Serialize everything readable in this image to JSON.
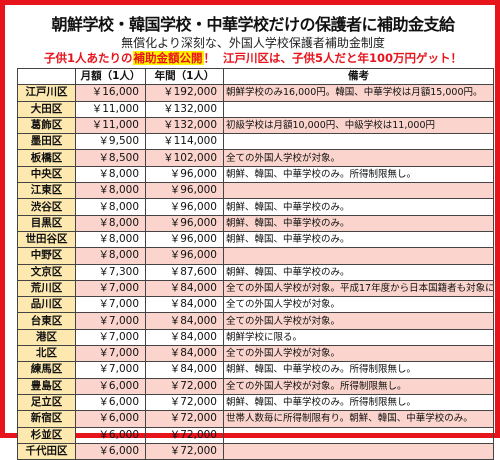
{
  "header": {
    "title": "朝鮮学校・韓国学校・中華学校だけの保護者に補助金支給",
    "subtitle": "無償化より深刻な、外国人学校保護者補助金制度",
    "callout_lead": "子供1人あたりの",
    "callout_highlight": "補助金額公開",
    "callout_mark": "！",
    "callout_tail": "江戸川区は、子供5人だと年100万円ゲット！"
  },
  "table": {
    "columns": [
      "",
      "月額（1人）",
      "年間（1人）",
      "備考"
    ],
    "rows": [
      {
        "ward": "江戸川区",
        "monthly": "￥16,000",
        "annual": "￥192,000",
        "note": "朝鮮学校のみ16,000円。韓国、中華学校は月額15,000円。"
      },
      {
        "ward": "大田区",
        "monthly": "￥11,000",
        "annual": "￥132,000",
        "note": ""
      },
      {
        "ward": "葛飾区",
        "monthly": "￥11,000",
        "annual": "￥132,000",
        "note": "初級学校は月額10,000円、中級学校は11,000円"
      },
      {
        "ward": "墨田区",
        "monthly": "￥9,500",
        "annual": "￥114,000",
        "note": ""
      },
      {
        "ward": "板橋区",
        "monthly": "￥8,500",
        "annual": "￥102,000",
        "note": "全ての外国人学校が対象。"
      },
      {
        "ward": "中央区",
        "monthly": "￥8,000",
        "annual": "￥96,000",
        "note": "朝鮮、韓国、中華学校のみ。所得制限無し。"
      },
      {
        "ward": "江東区",
        "monthly": "￥8,000",
        "annual": "￥96,000",
        "note": ""
      },
      {
        "ward": "渋谷区",
        "monthly": "￥8,000",
        "annual": "￥96,000",
        "note": "朝鮮、韓国、中華学校のみ。"
      },
      {
        "ward": "目黒区",
        "monthly": "￥8,000",
        "annual": "￥96,000",
        "note": "朝鮮、韓国、中華学校のみ。"
      },
      {
        "ward": "世田谷区",
        "monthly": "￥8,000",
        "annual": "￥96,000",
        "note": "朝鮮、韓国、中華学校のみ。"
      },
      {
        "ward": "中野区",
        "monthly": "￥8,000",
        "annual": "￥96,000",
        "note": ""
      },
      {
        "ward": "文京区",
        "monthly": "￥7,300",
        "annual": "￥87,600",
        "note": "朝鮮、韓国、中華学校のみ。"
      },
      {
        "ward": "荒川区",
        "monthly": "￥7,000",
        "annual": "￥84,000",
        "note": "全ての外国人学校が対象。平成17年度から日本国籍者も対象に"
      },
      {
        "ward": "品川区",
        "monthly": "￥7,000",
        "annual": "￥84,000",
        "note": "全ての外国人学校が対象。"
      },
      {
        "ward": "台東区",
        "monthly": "￥7,000",
        "annual": "￥84,000",
        "note": "全ての外国人学校が対象。"
      },
      {
        "ward": "港区",
        "monthly": "￥7,000",
        "annual": "￥84,000",
        "note": "朝鮮学校に限る。"
      },
      {
        "ward": "北区",
        "monthly": "￥7,000",
        "annual": "￥84,000",
        "note": "全ての外国人学校が対象。"
      },
      {
        "ward": "練馬区",
        "monthly": "￥7,000",
        "annual": "￥84,000",
        "note": "朝鮮、韓国、中華学校のみ。所得制限無し。"
      },
      {
        "ward": "豊島区",
        "monthly": "￥6,000",
        "annual": "￥72,000",
        "note": "全ての外国人学校が対象。所得制限無し。"
      },
      {
        "ward": "足立区",
        "monthly": "￥6,000",
        "annual": "￥72,000",
        "note": "朝鮮、韓国、中華学校のみ。所得制限無し。"
      },
      {
        "ward": "新宿区",
        "monthly": "￥6,000",
        "annual": "￥72,000",
        "note": "世帯人数毎に所得制限有り。朝鮮、韓国、中華学校のみ。"
      },
      {
        "ward": "杉並区",
        "monthly": "￥6,000",
        "annual": "￥72,000",
        "note": ""
      },
      {
        "ward": "千代田区",
        "monthly": "￥6,000",
        "annual": "￥72,000",
        "note": ""
      }
    ]
  }
}
